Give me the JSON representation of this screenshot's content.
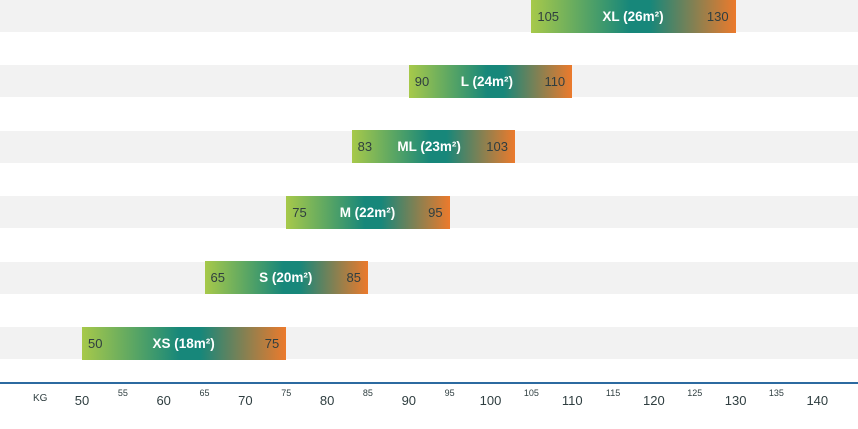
{
  "chart_data": {
    "type": "range-bar",
    "x_unit": "KG",
    "xlim": [
      45.3,
      150
    ],
    "major_ticks": [
      "50",
      "60",
      "70",
      "80",
      "90",
      "100",
      "110",
      "120",
      "130",
      "140"
    ],
    "minor_ticks": [
      "55",
      "65",
      "75",
      "85",
      "95",
      "105",
      "115",
      "125",
      "135"
    ],
    "colors": {
      "low": "#a7c94a",
      "mid": "#17877a",
      "high": "#ec7a2c",
      "lane": "#f2f2f2",
      "axis": "#2c6aa0"
    },
    "bars": [
      {
        "label": "XL (26m²)",
        "min": 105,
        "max": 130,
        "min_label": "105",
        "max_label": "130"
      },
      {
        "label": "L (24m²)",
        "min": 90,
        "max": 110,
        "min_label": "90",
        "max_label": "110"
      },
      {
        "label": "ML (23m²)",
        "min": 83,
        "max": 103,
        "min_label": "83",
        "max_label": "103"
      },
      {
        "label": "M (22m²)",
        "min": 75,
        "max": 95,
        "min_label": "75",
        "max_label": "95"
      },
      {
        "label": "S (20m²)",
        "min": 65,
        "max": 85,
        "min_label": "65",
        "max_label": "85"
      },
      {
        "label": "XS (18m²)",
        "min": 50,
        "max": 75,
        "min_label": "50",
        "max_label": "75"
      }
    ]
  }
}
